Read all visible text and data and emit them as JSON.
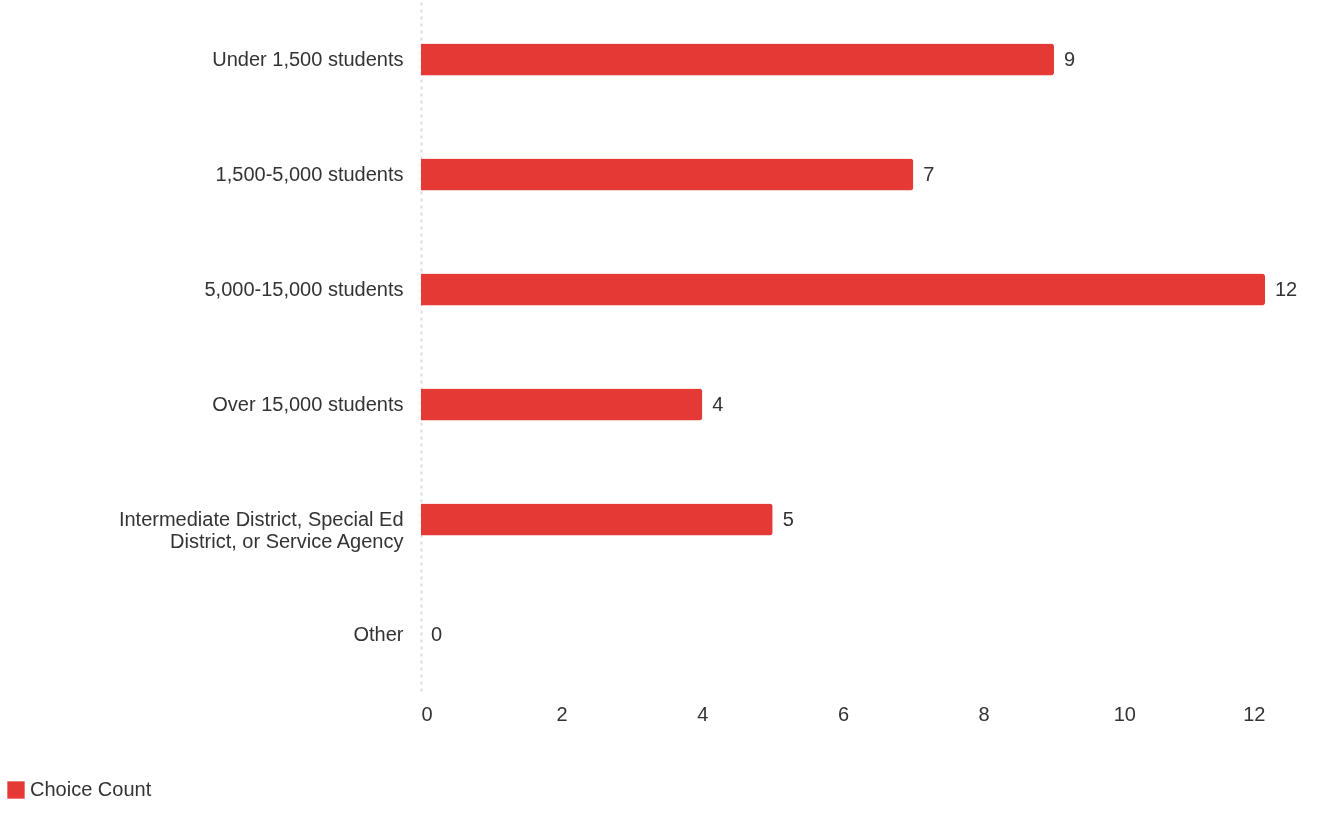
{
  "chart_data": {
    "type": "bar",
    "orientation": "horizontal",
    "categories": [
      "Under 1,500 students",
      "1,500-5,000 students",
      "5,000-15,000 students",
      "Over 15,000 students",
      "Intermediate District, Special Ed District, or Service Agency",
      "Other"
    ],
    "series": [
      {
        "name": "Choice Count",
        "color": "#e53935",
        "values": [
          9,
          7,
          12,
          4,
          5,
          0
        ]
      }
    ],
    "xlim": [
      0,
      12
    ],
    "xticks": [
      0,
      2,
      4,
      6,
      8,
      10,
      12
    ],
    "data_labels": true,
    "legend": "bottom left"
  }
}
